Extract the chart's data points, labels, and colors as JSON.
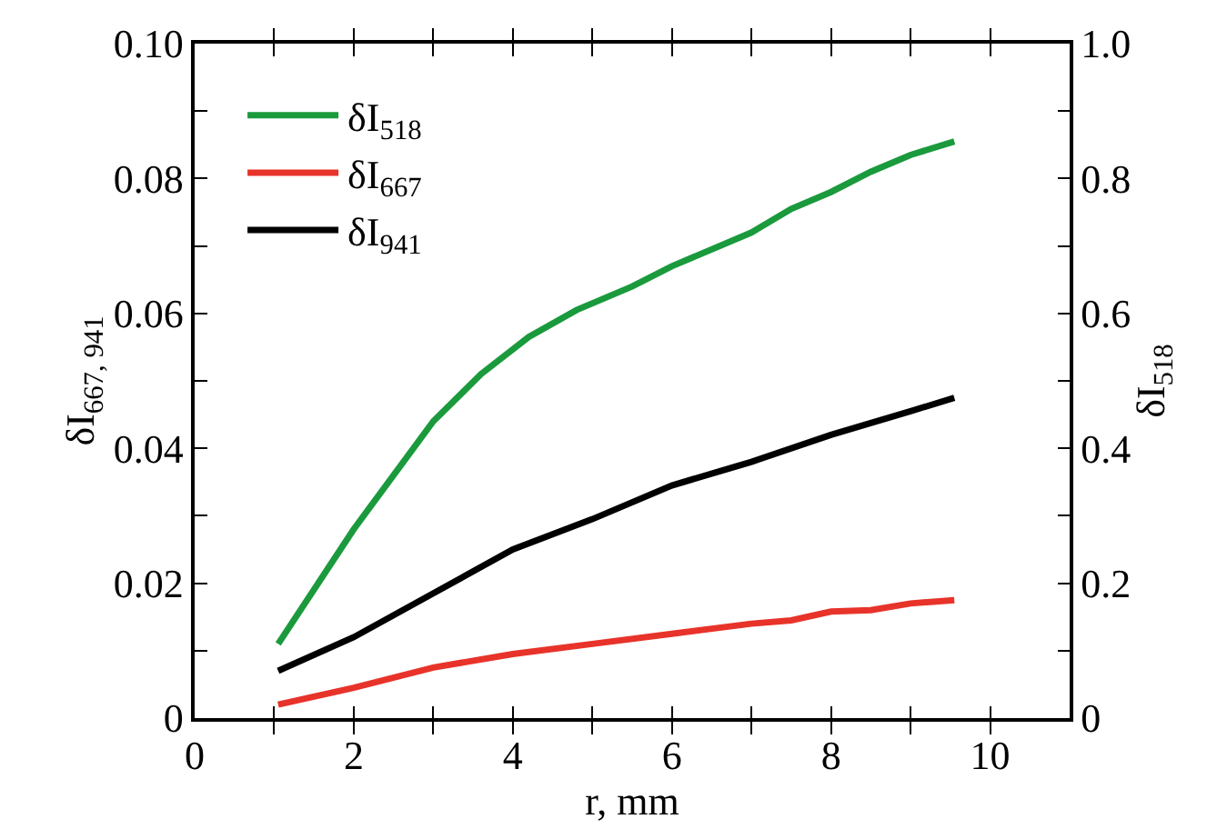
{
  "chart_data": {
    "type": "line",
    "xlabel": "r, mm",
    "ylabel": "δI$_{667, 941}$",
    "y2label": "δI$_{518}$",
    "xlim": [
      0,
      11
    ],
    "xticks": [
      0,
      {
        "value": 1,
        "label": null
      },
      2,
      {
        "value": 3,
        "label": null
      },
      4,
      {
        "value": 5,
        "label": null
      },
      6,
      {
        "value": 7,
        "label": null
      },
      8,
      {
        "value": 9,
        "label": null
      },
      10
    ],
    "ylim": [
      0,
      0.1
    ],
    "yticks": [
      0,
      {
        "value": 0.01,
        "label": null
      },
      0.02,
      {
        "value": 0.03,
        "label": null
      },
      0.04,
      {
        "value": 0.05,
        "label": null
      },
      0.06,
      {
        "value": 0.07,
        "label": null
      },
      0.08,
      {
        "value": 0.09,
        "label": null
      },
      {
        "value": 0.1,
        "label": "0.10"
      }
    ],
    "y2lim": [
      0,
      1
    ],
    "y2ticks": [
      0,
      {
        "value": 0.1,
        "label": null
      },
      0.2,
      {
        "value": 0.3,
        "label": null
      },
      0.4,
      {
        "value": 0.5,
        "label": null
      },
      0.6,
      {
        "value": 0.7,
        "label": null
      },
      0.8,
      {
        "value": 0.9,
        "label": null
      },
      {
        "value": 1,
        "label": "1.0"
      }
    ],
    "legend": "top left",
    "marker": "none",
    "line_style": "solid",
    "series": [
      {
        "name": "δI$_{518}$",
        "color": "#1a9a3c",
        "axis": "y2",
        "x": [
          1.05,
          2,
          3,
          3.6,
          4.2,
          4.8,
          5.5,
          6,
          7,
          7.5,
          8,
          8.5,
          9,
          9.55
        ],
        "values": [
          0.11,
          0.28,
          0.44,
          0.51,
          0.565,
          0.605,
          0.64,
          0.67,
          0.72,
          0.755,
          0.78,
          0.81,
          0.835,
          0.855
        ]
      },
      {
        "name": "δI$_{667}$",
        "color": "#e8332a",
        "x": [
          1.05,
          2,
          3,
          4,
          5,
          6,
          7,
          7.5,
          8,
          8.5,
          9,
          9.55
        ],
        "values": [
          0.002,
          0.0045,
          0.0075,
          0.0095,
          0.011,
          0.0125,
          0.014,
          0.0145,
          0.0158,
          0.016,
          0.017,
          0.0175
        ]
      },
      {
        "name": "δI$_{941}$",
        "color": "#000000",
        "x": [
          1.05,
          2,
          3,
          4,
          5,
          6,
          7,
          8,
          9,
          9.55
        ],
        "values": [
          0.007,
          0.012,
          0.0185,
          0.025,
          0.0295,
          0.0345,
          0.038,
          0.042,
          0.0455,
          0.0475
        ]
      }
    ]
  }
}
